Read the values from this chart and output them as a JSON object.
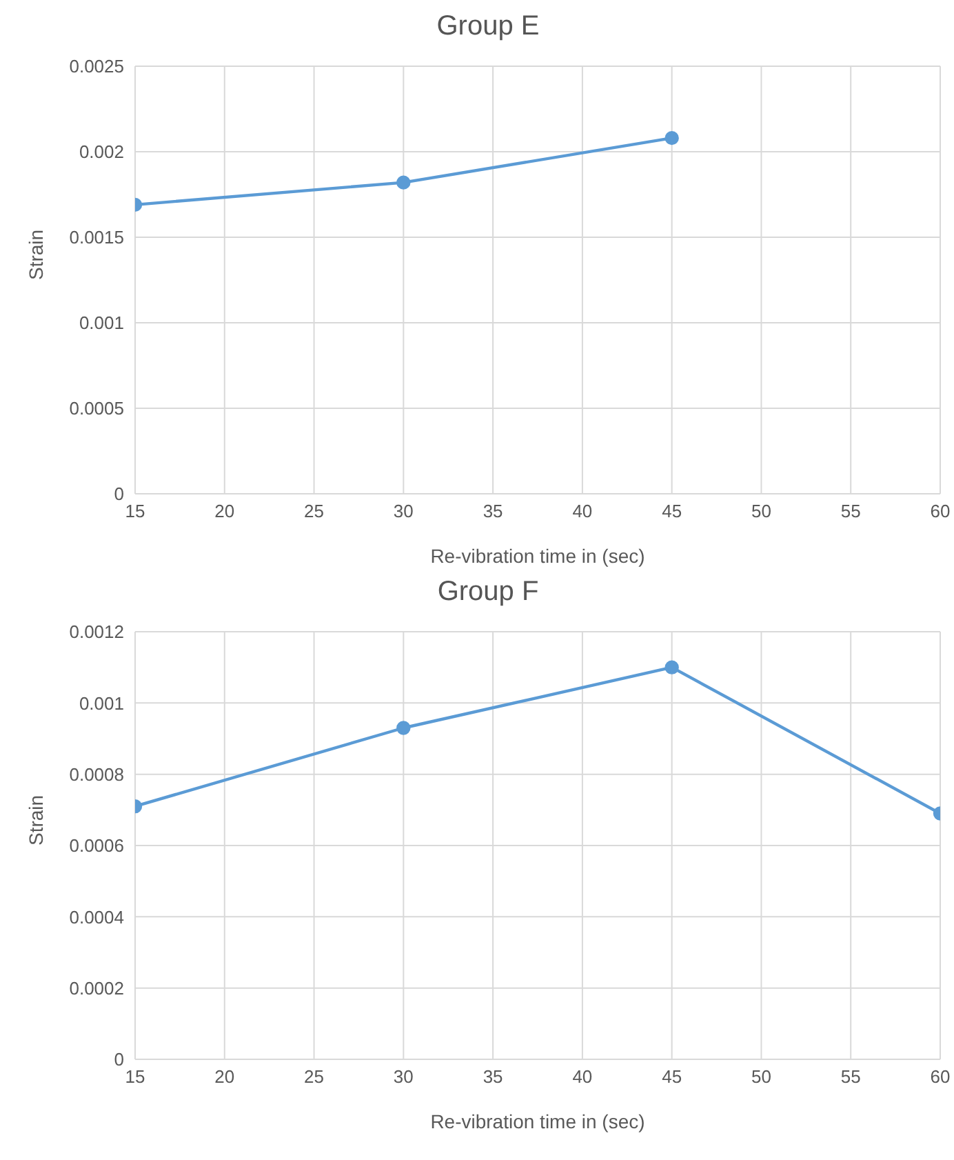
{
  "chart_data": [
    {
      "type": "line",
      "title": "Group E",
      "xlabel": "Re-vibration time in (sec)",
      "ylabel": "Strain",
      "x": [
        15,
        30,
        45
      ],
      "series": [
        {
          "color": "#5b9bd5",
          "values": [
            0.00169,
            0.00182,
            0.00208
          ]
        }
      ],
      "xlim": [
        15,
        60
      ],
      "xticks": [
        15,
        20,
        25,
        30,
        35,
        40,
        45,
        50,
        55,
        60
      ],
      "ylim": [
        0,
        0.0025
      ],
      "yticks": [
        0,
        0.0005,
        0.001,
        0.0015,
        0.002,
        0.0025
      ],
      "grid": true,
      "marker": "circle",
      "line_style": "solid",
      "legend": false
    },
    {
      "type": "line",
      "title": "Group F",
      "xlabel": "Re-vibration time in (sec)",
      "ylabel": "Strain",
      "x": [
        15,
        30,
        45,
        60
      ],
      "series": [
        {
          "color": "#5b9bd5",
          "values": [
            0.00071,
            0.00093,
            0.0011,
            0.00069
          ]
        }
      ],
      "xlim": [
        15,
        60
      ],
      "xticks": [
        15,
        20,
        25,
        30,
        35,
        40,
        45,
        50,
        55,
        60
      ],
      "ylim": [
        0,
        0.0012
      ],
      "yticks": [
        0,
        0.0002,
        0.0004,
        0.0006,
        0.0008,
        0.001,
        0.0012
      ],
      "grid": true,
      "marker": "circle",
      "line_style": "solid",
      "legend": false
    }
  ]
}
